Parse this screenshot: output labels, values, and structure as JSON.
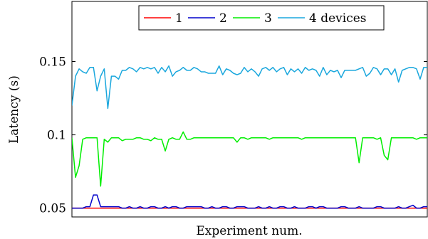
{
  "chart_data": {
    "type": "line",
    "xlabel": "Experiment num.",
    "ylabel": "Latency (s)",
    "ylim": [
      0.044,
      0.191
    ],
    "xlim": [
      1,
      100
    ],
    "yticks": [
      0.05,
      0.1,
      0.15
    ],
    "ytick_labels": [
      "0.05",
      "0.1",
      "0.15"
    ],
    "show_x_ticks": false,
    "grid": false,
    "legend": {
      "placement": "top-center",
      "entries": [
        {
          "label": "1",
          "color": "#ff0000"
        },
        {
          "label": "2",
          "color": "#0000cc"
        },
        {
          "label": "3",
          "color": "#00ee00"
        },
        {
          "label": "4 devices",
          "color": "#1aa7dd"
        }
      ]
    },
    "series": [
      {
        "name": "1",
        "color": "#ff0000",
        "values": [
          0.05,
          0.05,
          0.05,
          0.05,
          0.05,
          0.05,
          0.05,
          0.05,
          0.05,
          0.05,
          0.05,
          0.05,
          0.05,
          0.05,
          0.05,
          0.05,
          0.05,
          0.05,
          0.05,
          0.05,
          0.05,
          0.05,
          0.05,
          0.05,
          0.05,
          0.05,
          0.05,
          0.05,
          0.05,
          0.05,
          0.05,
          0.05,
          0.05,
          0.05,
          0.05,
          0.05,
          0.05,
          0.05,
          0.05,
          0.05,
          0.05,
          0.05,
          0.05,
          0.05,
          0.05,
          0.05,
          0.05,
          0.05,
          0.05,
          0.05,
          0.05,
          0.05,
          0.05,
          0.05,
          0.05,
          0.05,
          0.05,
          0.05,
          0.05,
          0.05,
          0.05,
          0.05,
          0.05,
          0.05,
          0.05,
          0.05,
          0.05,
          0.05,
          0.05,
          0.05,
          0.05,
          0.05,
          0.05,
          0.05,
          0.05,
          0.05,
          0.05,
          0.05,
          0.05,
          0.05,
          0.05,
          0.05,
          0.05,
          0.05,
          0.05,
          0.05,
          0.05,
          0.05,
          0.05,
          0.05,
          0.05,
          0.05,
          0.05,
          0.05,
          0.05,
          0.05,
          0.05,
          0.05,
          0.05,
          0.05
        ]
      },
      {
        "name": "2",
        "color": "#0000cc",
        "values": [
          0.05,
          0.05,
          0.05,
          0.05,
          0.051,
          0.051,
          0.059,
          0.059,
          0.051,
          0.051,
          0.051,
          0.051,
          0.051,
          0.051,
          0.05,
          0.05,
          0.051,
          0.05,
          0.05,
          0.051,
          0.05,
          0.05,
          0.051,
          0.051,
          0.05,
          0.05,
          0.051,
          0.05,
          0.051,
          0.051,
          0.05,
          0.05,
          0.051,
          0.051,
          0.051,
          0.051,
          0.051,
          0.05,
          0.05,
          0.051,
          0.05,
          0.05,
          0.051,
          0.051,
          0.05,
          0.05,
          0.051,
          0.051,
          0.051,
          0.05,
          0.05,
          0.05,
          0.051,
          0.05,
          0.05,
          0.051,
          0.05,
          0.05,
          0.051,
          0.051,
          0.05,
          0.05,
          0.051,
          0.05,
          0.05,
          0.05,
          0.051,
          0.051,
          0.05,
          0.051,
          0.051,
          0.05,
          0.05,
          0.05,
          0.05,
          0.051,
          0.051,
          0.05,
          0.05,
          0.05,
          0.051,
          0.05,
          0.05,
          0.05,
          0.05,
          0.051,
          0.051,
          0.05,
          0.05,
          0.05,
          0.05,
          0.051,
          0.05,
          0.05,
          0.051,
          0.052,
          0.05,
          0.05,
          0.051,
          0.051
        ]
      },
      {
        "name": "3",
        "color": "#00ee00",
        "values": [
          0.098,
          0.071,
          0.079,
          0.097,
          0.098,
          0.098,
          0.098,
          0.098,
          0.065,
          0.097,
          0.095,
          0.098,
          0.098,
          0.098,
          0.096,
          0.097,
          0.097,
          0.097,
          0.098,
          0.098,
          0.097,
          0.097,
          0.096,
          0.098,
          0.097,
          0.097,
          0.089,
          0.097,
          0.098,
          0.097,
          0.097,
          0.102,
          0.097,
          0.097,
          0.098,
          0.098,
          0.098,
          0.098,
          0.098,
          0.098,
          0.098,
          0.098,
          0.098,
          0.098,
          0.098,
          0.098,
          0.095,
          0.098,
          0.098,
          0.097,
          0.098,
          0.098,
          0.098,
          0.098,
          0.098,
          0.097,
          0.098,
          0.098,
          0.098,
          0.098,
          0.098,
          0.098,
          0.098,
          0.098,
          0.097,
          0.098,
          0.098,
          0.098,
          0.098,
          0.098,
          0.098,
          0.098,
          0.098,
          0.098,
          0.098,
          0.098,
          0.098,
          0.098,
          0.098,
          0.098,
          0.081,
          0.098,
          0.098,
          0.098,
          0.098,
          0.097,
          0.098,
          0.086,
          0.083,
          0.098,
          0.098,
          0.098,
          0.098,
          0.098,
          0.098,
          0.098,
          0.097,
          0.098,
          0.098,
          0.098
        ]
      },
      {
        "name": "4 devices",
        "color": "#1aa7dd",
        "values": [
          0.12,
          0.14,
          0.145,
          0.143,
          0.142,
          0.146,
          0.146,
          0.13,
          0.14,
          0.145,
          0.118,
          0.14,
          0.14,
          0.138,
          0.144,
          0.144,
          0.146,
          0.145,
          0.143,
          0.146,
          0.145,
          0.146,
          0.145,
          0.146,
          0.142,
          0.146,
          0.143,
          0.147,
          0.14,
          0.143,
          0.144,
          0.146,
          0.144,
          0.144,
          0.146,
          0.145,
          0.143,
          0.143,
          0.142,
          0.142,
          0.142,
          0.147,
          0.141,
          0.145,
          0.144,
          0.142,
          0.141,
          0.142,
          0.146,
          0.143,
          0.145,
          0.143,
          0.14,
          0.145,
          0.146,
          0.144,
          0.146,
          0.143,
          0.145,
          0.146,
          0.141,
          0.145,
          0.143,
          0.145,
          0.142,
          0.146,
          0.144,
          0.145,
          0.144,
          0.14,
          0.146,
          0.141,
          0.144,
          0.143,
          0.144,
          0.139,
          0.144,
          0.144,
          0.144,
          0.144,
          0.145,
          0.146,
          0.14,
          0.142,
          0.146,
          0.145,
          0.141,
          0.145,
          0.145,
          0.141,
          0.145,
          0.136,
          0.144,
          0.145,
          0.146,
          0.146,
          0.145,
          0.138,
          0.146,
          0.146
        ]
      }
    ]
  }
}
